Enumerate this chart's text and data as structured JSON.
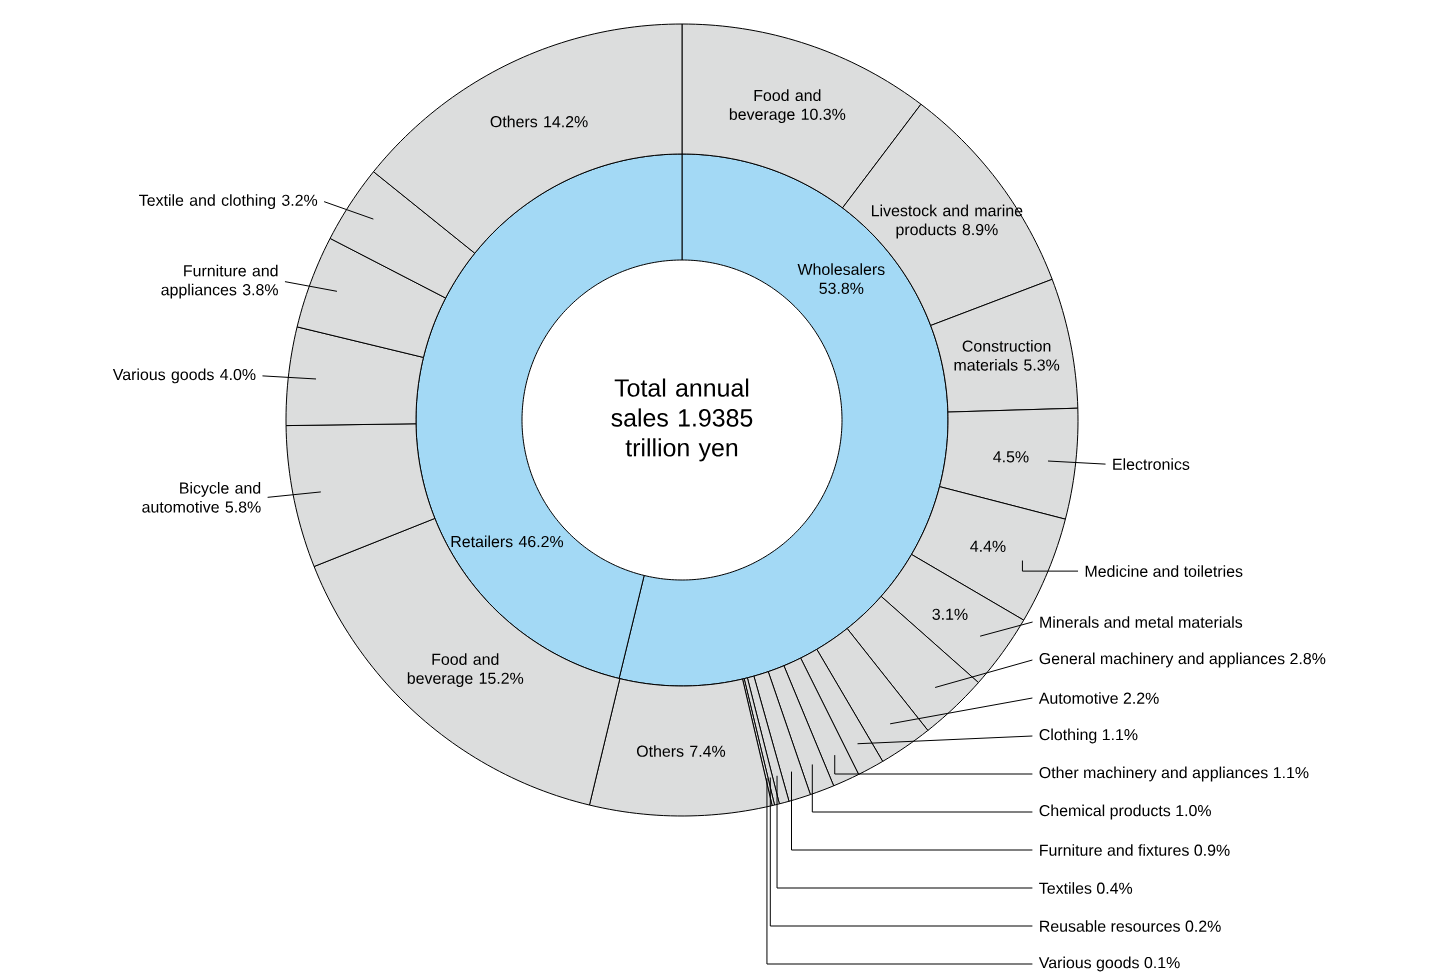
{
  "chart_data": [
    {
      "type": "donut",
      "title": "Total annual sales 1.9385 trillion yen",
      "categories": [
        "Wholesalers",
        "Retailers"
      ],
      "values": [
        53.8,
        46.2
      ],
      "colors": [
        "#a3d9f5",
        "#a3d9f5"
      ],
      "value_labels": [
        "53.8%",
        "46.2%"
      ]
    },
    {
      "type": "donut",
      "categories": [
        "Food and beverage",
        "Livestock and marine products",
        "Construction materials",
        "Electronics",
        "Medicine and toiletries",
        "Minerals and metal materials",
        "General machinery and appliances",
        "Automotive",
        "Clothing",
        "Other machinery and appliances",
        "Chemical products",
        "Furniture and fixtures",
        "Textiles",
        "Reusable resources",
        "Various goods",
        "Others",
        "Food and beverage",
        "Bicycle and automotive",
        "Various goods",
        "Furniture and appliances",
        "Textile and clothing",
        "Others"
      ],
      "values": [
        10.3,
        8.9,
        5.3,
        4.5,
        4.4,
        3.1,
        2.8,
        2.2,
        1.1,
        1.1,
        1.0,
        0.9,
        0.4,
        0.2,
        0.1,
        7.4,
        15.2,
        5.8,
        4.0,
        3.8,
        3.2,
        14.2
      ],
      "colors": [
        "#dcdddd",
        "#dcdddd",
        "#dcdddd",
        "#dcdddd",
        "#dcdddd",
        "#dcdddd",
        "#dcdddd",
        "#dcdddd",
        "#dcdddd",
        "#dcdddd",
        "#dcdddd",
        "#dcdddd",
        "#dcdddd",
        "#dcdddd",
        "#dcdddd",
        "#dcdddd",
        "#dcdddd",
        "#dcdddd",
        "#dcdddd",
        "#dcdddd",
        "#dcdddd",
        "#dcdddd"
      ],
      "value_labels": [
        "10.3%",
        "8.9%",
        "5.3%",
        "4.5%",
        "4.4%",
        "3.1%",
        "2.8%",
        "2.2%",
        "1.1%",
        "1.1%",
        "1.0%",
        "0.9%",
        "0.4%",
        "0.2%",
        "0.1%",
        "7.4%",
        "15.2%",
        "5.8%",
        "4.0%",
        "3.8%",
        "3.2%",
        "14.2%"
      ]
    }
  ]
}
